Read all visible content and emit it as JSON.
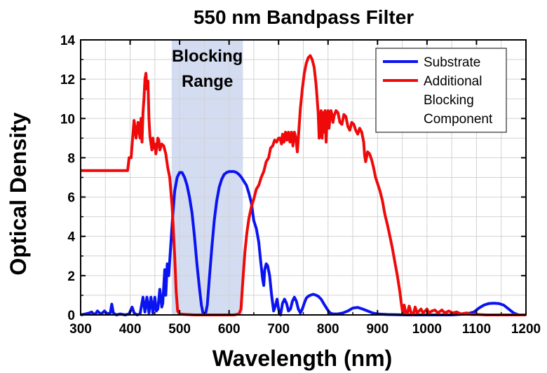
{
  "chart_data": {
    "type": "line",
    "title": "550 nm Bandpass Filter",
    "xlabel": "Wavelength (nm)",
    "ylabel": "Optical Density",
    "xlim": [
      300,
      1200
    ],
    "ylim": [
      0,
      14
    ],
    "xticks": [
      300,
      400,
      500,
      600,
      700,
      800,
      900,
      1000,
      1100,
      1200
    ],
    "yticks": [
      0,
      2,
      4,
      6,
      8,
      10,
      12,
      14
    ],
    "grid": true,
    "legend_position": "top-right",
    "shaded_region": {
      "label_lines": [
        "Blocking",
        "Range"
      ],
      "x_range": [
        484,
        628
      ],
      "color": "#d3dcf0"
    },
    "series": [
      {
        "name": "Substrate",
        "color": "#0a14f0",
        "points": [
          [
            300,
            0
          ],
          [
            310,
            0.05
          ],
          [
            318,
            0.1
          ],
          [
            322,
            0.15
          ],
          [
            326,
            0.05
          ],
          [
            330,
            0.05
          ],
          [
            334,
            0.2
          ],
          [
            338,
            0.1
          ],
          [
            342,
            0.05
          ],
          [
            348,
            0.2
          ],
          [
            354,
            0.05
          ],
          [
            360,
            0.1
          ],
          [
            363,
            0.55
          ],
          [
            366,
            0.1
          ],
          [
            372,
            0
          ],
          [
            380,
            0.05
          ],
          [
            390,
            0
          ],
          [
            398,
            0.05
          ],
          [
            404,
            0.4
          ],
          [
            408,
            0.1
          ],
          [
            414,
            0
          ],
          [
            420,
            0.05
          ],
          [
            426,
            0.9
          ],
          [
            430,
            0.15
          ],
          [
            434,
            0.9
          ],
          [
            438,
            0.1
          ],
          [
            442,
            0.9
          ],
          [
            446,
            0.1
          ],
          [
            450,
            0.9
          ],
          [
            453,
            0.2
          ],
          [
            456,
            0.3
          ],
          [
            460,
            1.3
          ],
          [
            464,
            0.4
          ],
          [
            466,
            0.6
          ],
          [
            470,
            2.3
          ],
          [
            472,
            1.0
          ],
          [
            475,
            2.6
          ],
          [
            478,
            2.0
          ],
          [
            482,
            3.5
          ],
          [
            486,
            5.0
          ],
          [
            490,
            6.3
          ],
          [
            495,
            7.0
          ],
          [
            500,
            7.25
          ],
          [
            505,
            7.25
          ],
          [
            510,
            7.0
          ],
          [
            515,
            6.6
          ],
          [
            520,
            6.0
          ],
          [
            525,
            5.2
          ],
          [
            530,
            4.0
          ],
          [
            535,
            2.6
          ],
          [
            540,
            1.4
          ],
          [
            544,
            0.5
          ],
          [
            548,
            0
          ],
          [
            552,
            0
          ],
          [
            556,
            0.5
          ],
          [
            560,
            1.8
          ],
          [
            565,
            3.4
          ],
          [
            570,
            4.8
          ],
          [
            575,
            5.8
          ],
          [
            580,
            6.5
          ],
          [
            585,
            6.9
          ],
          [
            590,
            7.15
          ],
          [
            595,
            7.25
          ],
          [
            600,
            7.3
          ],
          [
            605,
            7.3
          ],
          [
            610,
            7.3
          ],
          [
            615,
            7.25
          ],
          [
            620,
            7.15
          ],
          [
            625,
            7.0
          ],
          [
            630,
            6.8
          ],
          [
            635,
            6.6
          ],
          [
            640,
            6.2
          ],
          [
            645,
            5.7
          ],
          [
            650,
            4.8
          ],
          [
            655,
            4.4
          ],
          [
            660,
            3.7
          ],
          [
            664,
            2.7
          ],
          [
            668,
            1.8
          ],
          [
            670,
            1.5
          ],
          [
            672,
            2.3
          ],
          [
            675,
            2.6
          ],
          [
            678,
            2.5
          ],
          [
            682,
            2.0
          ],
          [
            686,
            1.0
          ],
          [
            690,
            0.2
          ],
          [
            694,
            0.5
          ],
          [
            697,
            0.8
          ],
          [
            700,
            0.3
          ],
          [
            704,
            0
          ],
          [
            708,
            0.6
          ],
          [
            712,
            0.8
          ],
          [
            716,
            0.6
          ],
          [
            720,
            0.2
          ],
          [
            724,
            0.3
          ],
          [
            728,
            0.7
          ],
          [
            732,
            0.9
          ],
          [
            736,
            0.7
          ],
          [
            740,
            0.3
          ],
          [
            744,
            0.1
          ],
          [
            748,
            0.3
          ],
          [
            752,
            0.6
          ],
          [
            756,
            0.85
          ],
          [
            760,
            0.95
          ],
          [
            764,
            1.0
          ],
          [
            770,
            1.05
          ],
          [
            776,
            1.0
          ],
          [
            780,
            0.95
          ],
          [
            786,
            0.8
          ],
          [
            792,
            0.55
          ],
          [
            798,
            0.3
          ],
          [
            804,
            0.1
          ],
          [
            810,
            0.05
          ],
          [
            820,
            0.05
          ],
          [
            830,
            0.1
          ],
          [
            840,
            0.2
          ],
          [
            850,
            0.35
          ],
          [
            860,
            0.38
          ],
          [
            870,
            0.3
          ],
          [
            880,
            0.2
          ],
          [
            890,
            0.1
          ],
          [
            900,
            0.05
          ],
          [
            920,
            0.02
          ],
          [
            960,
            0
          ],
          [
            1000,
            0
          ],
          [
            1050,
            0
          ],
          [
            1080,
            0.05
          ],
          [
            1095,
            0.15
          ],
          [
            1105,
            0.35
          ],
          [
            1115,
            0.5
          ],
          [
            1125,
            0.58
          ],
          [
            1135,
            0.6
          ],
          [
            1145,
            0.58
          ],
          [
            1155,
            0.5
          ],
          [
            1165,
            0.3
          ],
          [
            1175,
            0.1
          ],
          [
            1185,
            0
          ],
          [
            1200,
            0
          ]
        ]
      },
      {
        "name": "Additional Blocking Component",
        "color": "#ee0a0a",
        "points": [
          [
            300,
            7.35
          ],
          [
            395,
            7.35
          ],
          [
            398,
            8.0
          ],
          [
            402,
            8.0
          ],
          [
            405,
            9.0
          ],
          [
            408,
            9.9
          ],
          [
            412,
            9.0
          ],
          [
            416,
            9.8
          ],
          [
            420,
            9.0
          ],
          [
            422,
            10.0
          ],
          [
            424,
            8.8
          ],
          [
            426,
            10.3
          ],
          [
            428,
            11.0
          ],
          [
            430,
            12.0
          ],
          [
            432,
            12.3
          ],
          [
            434,
            11.5
          ],
          [
            436,
            11.9
          ],
          [
            438,
            10.0
          ],
          [
            440,
            9.1
          ],
          [
            444,
            8.4
          ],
          [
            446,
            9.0
          ],
          [
            448,
            8.5
          ],
          [
            450,
            8.7
          ],
          [
            452,
            8.2
          ],
          [
            454,
            8.6
          ],
          [
            456,
            9.0
          ],
          [
            458,
            8.9
          ],
          [
            460,
            8.4
          ],
          [
            464,
            8.7
          ],
          [
            468,
            8.6
          ],
          [
            472,
            8.2
          ],
          [
            476,
            7.5
          ],
          [
            480,
            7.0
          ],
          [
            485,
            5.5
          ],
          [
            490,
            3.0
          ],
          [
            493,
            1.2
          ],
          [
            496,
            0.2
          ],
          [
            500,
            0.05
          ],
          [
            510,
            0.03
          ],
          [
            530,
            0
          ],
          [
            560,
            0
          ],
          [
            590,
            0
          ],
          [
            610,
            0
          ],
          [
            620,
            0.05
          ],
          [
            624,
            0.3
          ],
          [
            628,
            1.8
          ],
          [
            632,
            3.2
          ],
          [
            636,
            4.2
          ],
          [
            640,
            4.9
          ],
          [
            645,
            5.5
          ],
          [
            650,
            5.9
          ],
          [
            655,
            6.4
          ],
          [
            660,
            6.6
          ],
          [
            665,
            7.0
          ],
          [
            670,
            7.3
          ],
          [
            675,
            7.8
          ],
          [
            680,
            8.0
          ],
          [
            684,
            8.5
          ],
          [
            688,
            8.6
          ],
          [
            692,
            8.9
          ],
          [
            696,
            8.8
          ],
          [
            700,
            9.0
          ],
          [
            703,
            9.0
          ],
          [
            706,
            8.7
          ],
          [
            708,
            9.2
          ],
          [
            711,
            8.8
          ],
          [
            714,
            9.3
          ],
          [
            717,
            8.9
          ],
          [
            720,
            9.3
          ],
          [
            723,
            8.8
          ],
          [
            726,
            9.3
          ],
          [
            729,
            8.6
          ],
          [
            732,
            9.3
          ],
          [
            735,
            9.0
          ],
          [
            738,
            8.3
          ],
          [
            740,
            9.0
          ],
          [
            744,
            10.5
          ],
          [
            748,
            11.5
          ],
          [
            752,
            12.3
          ],
          [
            756,
            12.8
          ],
          [
            760,
            13.1
          ],
          [
            764,
            13.2
          ],
          [
            768,
            13.0
          ],
          [
            772,
            12.6
          ],
          [
            776,
            11.7
          ],
          [
            780,
            10.3
          ],
          [
            782,
            9.0
          ],
          [
            784,
            10.0
          ],
          [
            786,
            10.4
          ],
          [
            788,
            9.0
          ],
          [
            790,
            10.3
          ],
          [
            792,
            9.3
          ],
          [
            794,
            10.4
          ],
          [
            796,
            8.8
          ],
          [
            798,
            10.1
          ],
          [
            800,
            10.4
          ],
          [
            802,
            9.5
          ],
          [
            804,
            10.0
          ],
          [
            806,
            10.4
          ],
          [
            808,
            10.2
          ],
          [
            810,
            9.8
          ],
          [
            812,
            10.1
          ],
          [
            816,
            10.4
          ],
          [
            820,
            10.3
          ],
          [
            824,
            9.8
          ],
          [
            828,
            9.7
          ],
          [
            832,
            10.2
          ],
          [
            836,
            10.1
          ],
          [
            840,
            9.6
          ],
          [
            844,
            9.4
          ],
          [
            848,
            9.8
          ],
          [
            852,
            9.7
          ],
          [
            856,
            9.4
          ],
          [
            860,
            9.2
          ],
          [
            864,
            9.5
          ],
          [
            868,
            9.3
          ],
          [
            872,
            8.8
          ],
          [
            874,
            8.1
          ],
          [
            876,
            7.8
          ],
          [
            880,
            8.3
          ],
          [
            884,
            8.2
          ],
          [
            888,
            7.9
          ],
          [
            892,
            7.5
          ],
          [
            896,
            7.0
          ],
          [
            900,
            6.7
          ],
          [
            905,
            6.3
          ],
          [
            910,
            5.8
          ],
          [
            915,
            5.1
          ],
          [
            920,
            4.6
          ],
          [
            925,
            4.0
          ],
          [
            930,
            3.4
          ],
          [
            935,
            2.7
          ],
          [
            940,
            2.0
          ],
          [
            945,
            1.2
          ],
          [
            948,
            0.6
          ],
          [
            951,
            0.1
          ],
          [
            954,
            0.5
          ],
          [
            957,
            0.1
          ],
          [
            960,
            0.05
          ],
          [
            964,
            0.45
          ],
          [
            968,
            0.1
          ],
          [
            972,
            0
          ],
          [
            976,
            0.4
          ],
          [
            980,
            0.1
          ],
          [
            984,
            0.2
          ],
          [
            988,
            0.3
          ],
          [
            992,
            0.1
          ],
          [
            996,
            0.2
          ],
          [
            1000,
            0.3
          ],
          [
            1004,
            0.1
          ],
          [
            1010,
            0.2
          ],
          [
            1016,
            0.25
          ],
          [
            1022,
            0.1
          ],
          [
            1030,
            0.25
          ],
          [
            1036,
            0.1
          ],
          [
            1044,
            0.2
          ],
          [
            1052,
            0.1
          ],
          [
            1060,
            0.15
          ],
          [
            1068,
            0.05
          ],
          [
            1080,
            0.1
          ],
          [
            1090,
            0.02
          ],
          [
            1100,
            0.03
          ],
          [
            1120,
            0
          ],
          [
            1160,
            0
          ],
          [
            1200,
            0
          ]
        ]
      }
    ]
  }
}
